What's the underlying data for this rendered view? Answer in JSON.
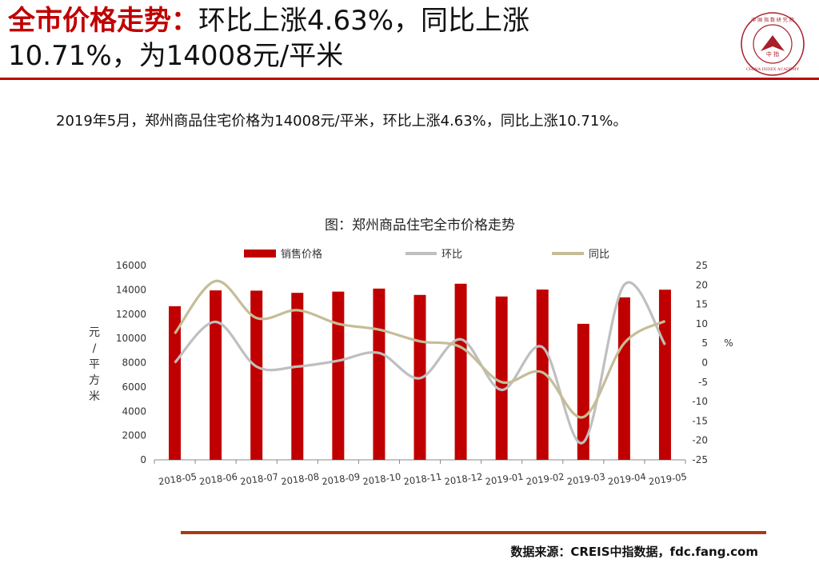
{
  "header": {
    "title_lead": "全市价格走势：",
    "title_line1_rest": "环比上涨4.63%，同比上涨",
    "title_line2": "10.71%，为14008元/平米"
  },
  "logo": {
    "ring_text": "中国指数研究院",
    "en_text": "CHINA INDEX ACADEMY",
    "center_text": "中 指",
    "color": "#a8202a"
  },
  "summary": "2019年5月，郑州商品住宅价格为14008元/平米，环比上涨4.63%，同比上涨10.71%。",
  "chart_data": {
    "type": "bar",
    "title": "图：郑州商品住宅全市价格走势",
    "categories": [
      "2018-05",
      "2018-06",
      "2018-07",
      "2018-08",
      "2018-09",
      "2018-10",
      "2018-11",
      "2018-12",
      "2019-01",
      "2019-02",
      "2019-03",
      "2019-04",
      "2019-05"
    ],
    "series": [
      {
        "name": "销售价格",
        "type": "bar",
        "axis": "left",
        "color": "#c00000",
        "values": [
          12650,
          13950,
          13930,
          13750,
          13850,
          14100,
          13580,
          14500,
          13450,
          14020,
          11200,
          13380,
          14008
        ]
      },
      {
        "name": "环比",
        "type": "line",
        "axis": "right",
        "color": "#bfbfbf",
        "values": [
          0,
          10.5,
          -1,
          -1,
          0.5,
          2.5,
          -4,
          6,
          -7,
          4,
          -20.5,
          20,
          4.63
        ]
      },
      {
        "name": "同比",
        "type": "line",
        "axis": "right",
        "color": "#c4bd97",
        "values": [
          7.5,
          21,
          11.5,
          13.5,
          10,
          8.5,
          5.5,
          4,
          -5,
          -2.5,
          -14,
          5,
          10.71
        ]
      }
    ],
    "yleft": {
      "label": "元/平方米",
      "ylim": [
        0,
        16000
      ],
      "ticks": [
        0,
        2000,
        4000,
        6000,
        8000,
        10000,
        12000,
        14000,
        16000
      ]
    },
    "yright": {
      "label": "%",
      "ylim": [
        -25,
        25
      ],
      "ticks": [
        -25,
        -20,
        -15,
        -10,
        -5,
        0,
        5,
        10,
        15,
        20,
        25
      ]
    },
    "legend": "top",
    "grid": false
  },
  "footer": {
    "source": "数据来源：CREIS中指数据，fdc.fang.com",
    "rule_color": "#a93a16"
  }
}
